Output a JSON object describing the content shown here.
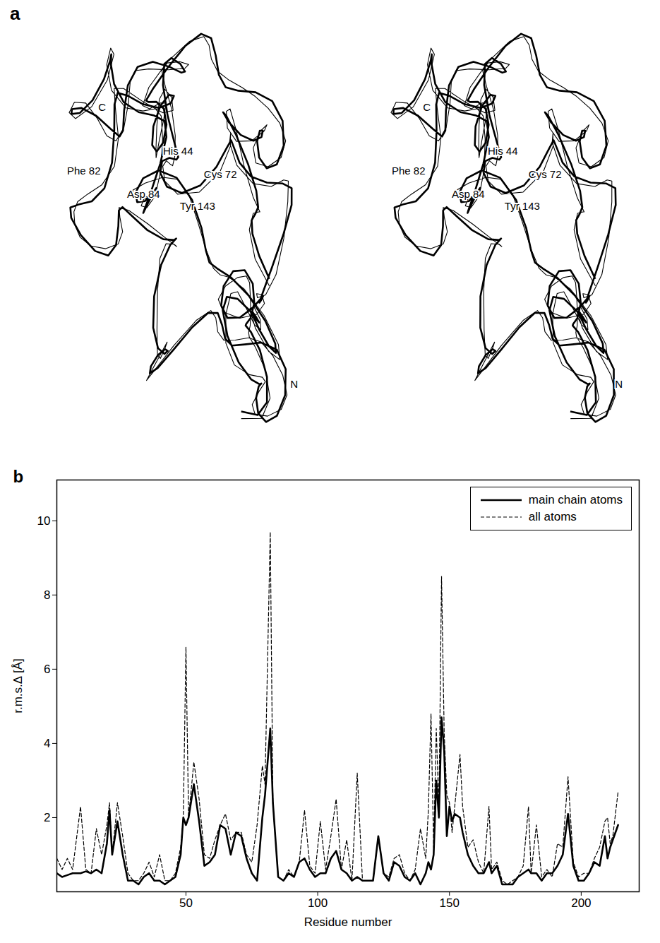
{
  "stereo_view": {
    "panel_label": "a",
    "labels": [
      "C",
      "Phe 82",
      "His 44",
      "Cys 72",
      "Tyr 143",
      "Asp 84",
      "N"
    ]
  },
  "chart_data": {
    "type": "line",
    "panel_label": "b",
    "x_label": "Residue number",
    "y_label": "r.m.s.Δ [Å]",
    "x": [
      1,
      3,
      5,
      7,
      10,
      12,
      14,
      16,
      18,
      20,
      21,
      22,
      24,
      26,
      28,
      30,
      32,
      34,
      36,
      38,
      40,
      42,
      44,
      46,
      48,
      49,
      50,
      51,
      53,
      55,
      57,
      59,
      61,
      63,
      65,
      67,
      69,
      71,
      73,
      75,
      77,
      79,
      80,
      82,
      83,
      85,
      87,
      89,
      91,
      93,
      95,
      97,
      99,
      101,
      103,
      105,
      107,
      109,
      111,
      113,
      115,
      117,
      119,
      121,
      123,
      125,
      127,
      129,
      131,
      133,
      135,
      137,
      139,
      141,
      142,
      143,
      144,
      145,
      146,
      147,
      148,
      149,
      150,
      151,
      152,
      154,
      155,
      157,
      159,
      161,
      163,
      165,
      166,
      168,
      170,
      172,
      174,
      176,
      178,
      180,
      181,
      183,
      185,
      187,
      189,
      191,
      193,
      195,
      197,
      199,
      201,
      203,
      205,
      207,
      209,
      210,
      211,
      212,
      214
    ],
    "series": [
      {
        "name": "main chain atoms",
        "color": "#000000",
        "line_style": "solid",
        "values": [
          0.5,
          0.4,
          0.45,
          0.5,
          0.5,
          0.55,
          0.5,
          0.6,
          0.5,
          1.3,
          2.2,
          1.0,
          1.9,
          1.0,
          0.3,
          0.3,
          0.2,
          0.4,
          0.5,
          0.3,
          0.3,
          0.2,
          0.3,
          0.4,
          1.0,
          2.0,
          1.8,
          2.0,
          2.9,
          1.9,
          0.7,
          0.8,
          1.0,
          1.8,
          1.7,
          1.0,
          1.6,
          1.5,
          0.9,
          0.5,
          0.3,
          2.0,
          2.6,
          4.4,
          2.4,
          0.4,
          0.3,
          0.5,
          0.4,
          0.8,
          0.9,
          0.6,
          0.4,
          0.5,
          0.5,
          0.9,
          1.1,
          0.6,
          0.5,
          0.3,
          0.4,
          0.3,
          0.3,
          0.3,
          1.5,
          0.5,
          0.3,
          0.8,
          0.7,
          0.4,
          0.3,
          0.5,
          0.2,
          0.5,
          0.8,
          0.6,
          1.0,
          3.0,
          2.0,
          4.7,
          3.8,
          1.5,
          2.3,
          1.9,
          2.1,
          2.0,
          1.6,
          1.0,
          0.7,
          0.5,
          0.5,
          0.8,
          0.5,
          0.7,
          0.2,
          0.2,
          0.2,
          0.4,
          0.5,
          0.6,
          0.5,
          0.5,
          0.3,
          0.5,
          0.5,
          0.7,
          1.0,
          2.1,
          0.7,
          0.3,
          0.3,
          0.5,
          0.8,
          0.7,
          1.5,
          0.9,
          1.2,
          1.4,
          1.8
        ]
      },
      {
        "name": "all atoms",
        "color": "#000000",
        "line_style": "dashed",
        "values": [
          0.9,
          0.6,
          0.9,
          0.6,
          2.3,
          0.6,
          0.5,
          1.7,
          1.0,
          1.8,
          2.4,
          1.0,
          2.4,
          1.5,
          0.5,
          0.3,
          0.3,
          0.5,
          0.8,
          0.4,
          1.0,
          0.3,
          0.3,
          0.5,
          1.2,
          2.0,
          6.6,
          2.0,
          3.5,
          2.5,
          1.0,
          0.9,
          1.4,
          1.8,
          2.1,
          1.4,
          1.6,
          1.6,
          1.0,
          0.8,
          1.8,
          3.4,
          2.9,
          9.7,
          2.4,
          0.4,
          0.3,
          0.6,
          0.4,
          0.8,
          2.2,
          0.7,
          0.5,
          1.9,
          0.6,
          1.5,
          2.5,
          0.6,
          1.4,
          0.3,
          3.2,
          0.3,
          0.3,
          0.3,
          1.5,
          0.5,
          0.4,
          0.9,
          1.0,
          0.5,
          0.3,
          0.6,
          1.7,
          0.9,
          2.2,
          4.8,
          1.2,
          4.4,
          2.2,
          8.5,
          4.3,
          2.6,
          2.4,
          1.6,
          2.3,
          3.7,
          2.3,
          1.2,
          1.4,
          0.8,
          0.5,
          2.3,
          0.6,
          0.8,
          0.3,
          0.2,
          0.3,
          0.4,
          0.7,
          2.3,
          0.5,
          1.8,
          0.4,
          0.6,
          0.4,
          1.3,
          1.2,
          3.1,
          0.8,
          0.4,
          0.5,
          0.5,
          0.9,
          1.2,
          1.9,
          2.0,
          1.3,
          1.5,
          2.7
        ]
      }
    ],
    "xlim": [
      1,
      222
    ],
    "xticks": [
      50,
      100,
      150,
      200
    ],
    "ylim": [
      0,
      11.1
    ],
    "yticks": [
      2,
      4,
      6,
      8,
      10
    ],
    "legend": "top-right",
    "grid": false
  }
}
